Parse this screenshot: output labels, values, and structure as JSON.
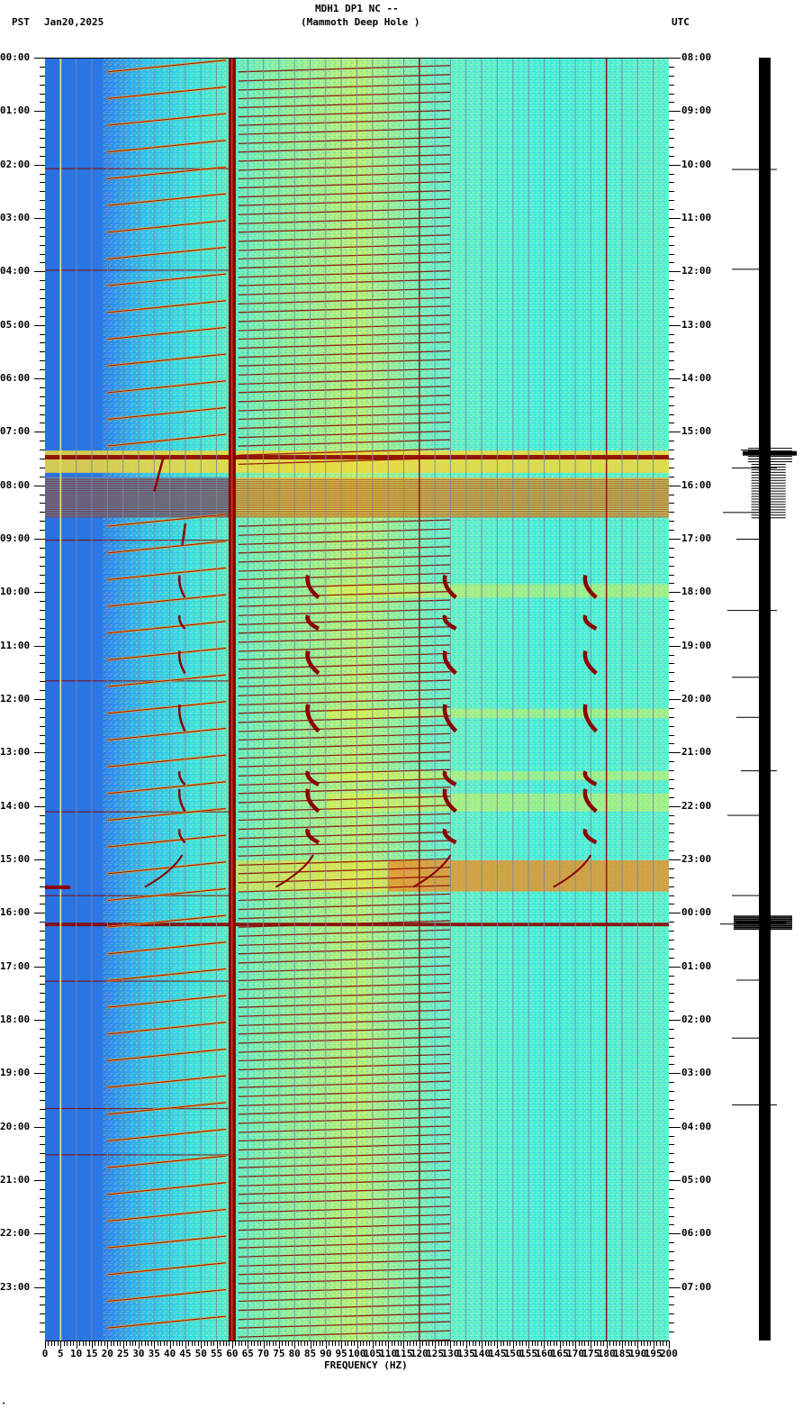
{
  "header": {
    "station_line": "MDH1 DP1 NC --",
    "station_name": "(Mammoth Deep Hole )",
    "left_timezone": "PST",
    "date": "Jan20,2025",
    "right_timezone": "UTC"
  },
  "footer": {
    "xlabel": "FREQUENCY (HZ)",
    "corner_mark": "•"
  },
  "colors": {
    "low": "#1a5fd8",
    "mid_low": "#27c8ee",
    "mid": "#3ef0d8",
    "mid_high": "#f2f03a",
    "high": "#f58a1a",
    "max": "#8b0000",
    "grid": "#7a8a9a",
    "trace": "#000000"
  },
  "chart_data": {
    "type": "heatmap",
    "title": "MDH1 DP1 NC -- (Mammoth Deep Hole ) spectrogram, Jan20,2025",
    "xlabel": "FREQUENCY (HZ)",
    "ylabel_left": "PST",
    "ylabel_right": "UTC",
    "xlim": [
      0,
      200
    ],
    "x_ticks": [
      0,
      5,
      10,
      15,
      20,
      25,
      30,
      35,
      40,
      45,
      50,
      55,
      60,
      65,
      70,
      75,
      80,
      85,
      90,
      95,
      100,
      105,
      110,
      115,
      120,
      125,
      130,
      135,
      140,
      145,
      150,
      155,
      160,
      165,
      170,
      175,
      180,
      185,
      190,
      195,
      200
    ],
    "y_ticks_left": [
      "00:00",
      "01:00",
      "02:00",
      "03:00",
      "04:00",
      "05:00",
      "06:00",
      "07:00",
      "08:00",
      "09:00",
      "10:00",
      "11:00",
      "12:00",
      "13:00",
      "14:00",
      "15:00",
      "16:00",
      "17:00",
      "18:00",
      "19:00",
      "20:00",
      "21:00",
      "22:00",
      "23:00"
    ],
    "y_ticks_right": [
      "08:00",
      "09:00",
      "10:00",
      "11:00",
      "12:00",
      "13:00",
      "14:00",
      "15:00",
      "16:00",
      "17:00",
      "18:00",
      "19:00",
      "20:00",
      "21:00",
      "22:00",
      "23:00",
      "00:00",
      "01:00",
      "02:00",
      "03:00",
      "04:00",
      "05:00",
      "06:00",
      "07:00"
    ],
    "minor_ticks_per_hour": 5,
    "grid": true,
    "persistent_lines_hz": [
      5,
      60,
      120,
      180
    ],
    "strong_line_hz": 60,
    "broadband_events_pst": [
      {
        "start": "07:20",
        "end": "07:45",
        "note": "strong broadband band"
      },
      {
        "start": "07:50",
        "end": "08:35",
        "note": "broadband striped band"
      },
      {
        "start": "15:00",
        "end": "15:35",
        "note": "high energy 120-200 Hz"
      },
      {
        "start": "16:10",
        "end": "16:15",
        "note": "horizontal line across full band"
      }
    ],
    "chirp_tracks_hz": [
      44,
      86,
      130,
      175
    ],
    "chirp_track_time_range_pst": [
      "08:40",
      "15:40"
    ],
    "background_energy": "low (blue) below 20 Hz, medium (cyan/yellow) above",
    "seismogram_spikes_pst": [
      "02:05",
      "03:57",
      "07:20",
      "07:40",
      "08:30",
      "09:00",
      "10:20",
      "11:35",
      "12:20",
      "13:20",
      "14:10",
      "15:40",
      "16:12",
      "17:15",
      "18:20",
      "19:35"
    ]
  },
  "y_axis": {
    "left_labels": [
      "00:00",
      "01:00",
      "02:00",
      "03:00",
      "04:00",
      "05:00",
      "06:00",
      "07:00",
      "08:00",
      "09:00",
      "10:00",
      "11:00",
      "12:00",
      "13:00",
      "14:00",
      "15:00",
      "16:00",
      "17:00",
      "18:00",
      "19:00",
      "20:00",
      "21:00",
      "22:00",
      "23:00"
    ],
    "right_labels": [
      "08:00",
      "09:00",
      "10:00",
      "11:00",
      "12:00",
      "13:00",
      "14:00",
      "15:00",
      "16:00",
      "17:00",
      "18:00",
      "19:00",
      "20:00",
      "21:00",
      "22:00",
      "23:00",
      "00:00",
      "01:00",
      "02:00",
      "03:00",
      "04:00",
      "05:00",
      "06:00",
      "07:00"
    ]
  },
  "x_axis": {
    "labels": [
      "0",
      "5",
      "10",
      "15",
      "20",
      "25",
      "30",
      "35",
      "40",
      "45",
      "50",
      "55",
      "60",
      "65",
      "70",
      "75",
      "80",
      "85",
      "90",
      "95",
      "100",
      "105",
      "110",
      "115",
      "120",
      "125",
      "130",
      "135",
      "140",
      "145",
      "150",
      "155",
      "160",
      "165",
      "170",
      "175",
      "180",
      "185",
      "190",
      "195",
      "200"
    ]
  }
}
